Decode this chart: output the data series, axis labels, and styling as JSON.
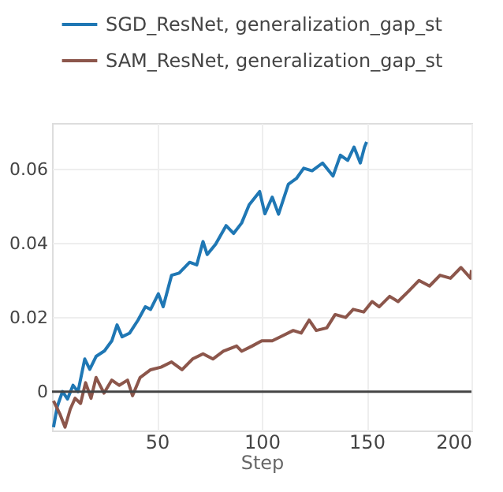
{
  "chart_data": {
    "type": "line",
    "xlabel": "Step",
    "xlim": [
      0,
      200
    ],
    "ylim": [
      -0.0105,
      0.0725
    ],
    "xticks": [
      50,
      100,
      150,
      200
    ],
    "yticks": [
      0,
      0.02,
      0.04,
      0.06
    ],
    "grid": true,
    "legend": "top",
    "line_style": "solid",
    "marker": "none",
    "ref_lines": [
      {
        "axis": "y",
        "value": 0,
        "color": "#444444"
      }
    ],
    "series": [
      {
        "name": "SGD_ResNet, generalization_gap_st",
        "color": "#1f77b4",
        "x": [
          0.7,
          2.5,
          5,
          7.4,
          10,
          12.4,
          15.6,
          18,
          21,
          25,
          28.5,
          31,
          33.4,
          37,
          41,
          44.5,
          47,
          50.7,
          53,
          57,
          60.6,
          65.6,
          69,
          72,
          74,
          78,
          83,
          86.6,
          90.4,
          94,
          99,
          101.5,
          105,
          108,
          112.7,
          116.5,
          120,
          124,
          129,
          134,
          137.5,
          141,
          144,
          147,
          149,
          150
        ],
        "values": [
          -0.0096,
          -0.004,
          0,
          -0.002,
          0.0017,
          0,
          0.0088,
          0.006,
          0.0095,
          0.011,
          0.0137,
          0.018,
          0.0148,
          0.0158,
          0.0193,
          0.0229,
          0.0222,
          0.0264,
          0.0229,
          0.0314,
          0.032,
          0.0349,
          0.0342,
          0.0405,
          0.037,
          0.0398,
          0.0448,
          0.0427,
          0.0455,
          0.0504,
          0.054,
          0.048,
          0.0525,
          0.0479,
          0.056,
          0.0575,
          0.0603,
          0.0596,
          0.0617,
          0.0582,
          0.0638,
          0.0624,
          0.066,
          0.0617,
          0.066,
          0.0674
        ]
      },
      {
        "name": "SAM_ResNet, generalization_gap_st",
        "color": "#8c564b",
        "x": [
          0.7,
          3.7,
          6.2,
          8.7,
          11,
          13.6,
          16,
          18.6,
          21,
          24.8,
          28.5,
          32,
          36,
          38.4,
          42,
          47,
          52,
          57,
          62,
          67,
          72,
          76.7,
          81.7,
          88,
          90.4,
          95.4,
          100,
          105,
          110,
          115,
          118.8,
          122.6,
          126,
          131,
          135,
          140,
          143.6,
          148.6,
          152.6,
          156,
          161,
          165,
          170,
          175,
          180,
          185,
          190,
          195,
          199.6,
          200
        ],
        "values": [
          -0.0025,
          -0.006,
          -0.0096,
          -0.0047,
          -0.0018,
          -0.0032,
          0.0024,
          -0.0018,
          0.0038,
          -0.0004,
          0.0031,
          0.0017,
          0.0031,
          -0.0011,
          0.0038,
          0.0059,
          0.0066,
          0.008,
          0.0059,
          0.0088,
          0.0102,
          0.0088,
          0.0109,
          0.0123,
          0.0109,
          0.0123,
          0.0137,
          0.0137,
          0.0151,
          0.0165,
          0.0158,
          0.0193,
          0.0165,
          0.0172,
          0.0208,
          0.02,
          0.0222,
          0.0215,
          0.0243,
          0.0229,
          0.0257,
          0.0243,
          0.0271,
          0.03,
          0.0285,
          0.0314,
          0.0306,
          0.0335,
          0.0306,
          0.0328
        ]
      }
    ]
  }
}
